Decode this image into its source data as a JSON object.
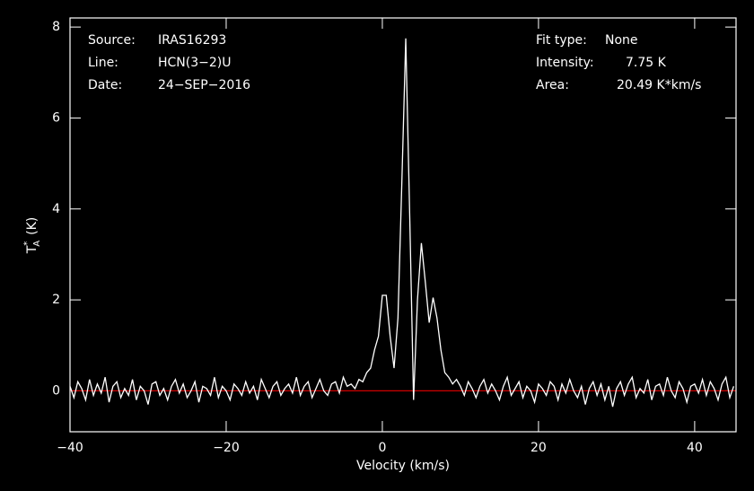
{
  "chart_data": {
    "type": "line",
    "info_left": [
      [
        "Source:",
        "IRAS16293"
      ],
      [
        "Line:",
        "HCN(3−2)U"
      ],
      [
        "Date:",
        "24−SEP−2016"
      ]
    ],
    "info_right": [
      [
        "Fit type:",
        "None"
      ],
      [
        "Intensity:",
        "7.75 K"
      ],
      [
        "Area:",
        "20.49 K*km/s"
      ]
    ],
    "x_label": "Velocity (km/s)",
    "y_label": {
      "base": "T",
      "sup": "*",
      "sub": "A",
      "unit": "(K)"
    },
    "xlim": [
      -40,
      45.3
    ],
    "ylim": [
      -0.9,
      8.2
    ],
    "xticks": [
      {
        "value": -40,
        "label": "−40"
      },
      {
        "value": -20,
        "label": "−20"
      },
      0,
      20,
      40
    ],
    "yticks": [
      0,
      2,
      4,
      6,
      8
    ],
    "hline": {
      "value": 0,
      "color": "#d00000"
    },
    "series": [
      {
        "color": "#ffffff",
        "x": [
          -40,
          -39.5,
          -39,
          -38.5,
          -38,
          -37.5,
          -37,
          -36.5,
          -36,
          -35.5,
          -35,
          -34.5,
          -34,
          -33.5,
          -33,
          -32.5,
          -32,
          -31.5,
          -31,
          -30.5,
          -30,
          -29.5,
          -29,
          -28.5,
          -28,
          -27.5,
          -27,
          -26.5,
          -26,
          -25.5,
          -25,
          -24.5,
          -24,
          -23.5,
          -23,
          -22.5,
          -22,
          -21.5,
          -21,
          -20.5,
          -20,
          -19.5,
          -19,
          -18.5,
          -18,
          -17.5,
          -17,
          -16.5,
          -16,
          -15.5,
          -15,
          -14.5,
          -14,
          -13.5,
          -13,
          -12.5,
          -12,
          -11.5,
          -11,
          -10.5,
          -10,
          -9.5,
          -9,
          -8.5,
          -8,
          -7.5,
          -7,
          -6.5,
          -6,
          -5.5,
          -5,
          -4.5,
          -4,
          -3.5,
          -3,
          -2.5,
          -2,
          -1.5,
          -1,
          -0.5,
          0,
          0.5,
          1,
          1.5,
          2,
          2.5,
          3,
          3.5,
          4,
          4.5,
          5,
          5.5,
          6,
          6.5,
          7,
          7.5,
          8,
          8.5,
          9,
          9.5,
          10,
          10.5,
          11,
          11.5,
          12,
          12.5,
          13,
          13.5,
          14,
          14.5,
          15,
          15.5,
          16,
          16.5,
          17,
          17.5,
          18,
          18.5,
          19,
          19.5,
          20,
          20.5,
          21,
          21.5,
          22,
          22.5,
          23,
          23.5,
          24,
          24.5,
          25,
          25.5,
          26,
          26.5,
          27,
          27.5,
          28,
          28.5,
          29,
          29.5,
          30,
          30.5,
          31,
          31.5,
          32,
          32.5,
          33,
          33.5,
          34,
          34.5,
          35,
          35.5,
          36,
          36.5,
          37,
          37.5,
          38,
          38.5,
          39,
          39.5,
          40,
          40.5,
          41,
          41.5,
          42,
          42.5,
          43,
          43.5,
          44,
          44.5,
          45
        ],
        "values": [
          0.1,
          -0.15,
          0.2,
          0.05,
          -0.2,
          0.25,
          -0.1,
          0.15,
          -0.05,
          0.3,
          -0.25,
          0.1,
          0.2,
          -0.15,
          0.05,
          -0.1,
          0.25,
          -0.2,
          0.1,
          0.0,
          -0.3,
          0.15,
          0.2,
          -0.1,
          0.05,
          -0.2,
          0.1,
          0.25,
          -0.05,
          0.15,
          -0.15,
          0.0,
          0.2,
          -0.25,
          0.1,
          0.05,
          -0.1,
          0.3,
          -0.15,
          0.1,
          0.0,
          -0.2,
          0.15,
          0.05,
          -0.1,
          0.2,
          -0.05,
          0.1,
          -0.2,
          0.25,
          0.05,
          -0.15,
          0.1,
          0.2,
          -0.1,
          0.05,
          0.15,
          -0.05,
          0.3,
          -0.1,
          0.1,
          0.2,
          -0.15,
          0.05,
          0.25,
          0.0,
          -0.1,
          0.15,
          0.2,
          -0.05,
          0.3,
          0.1,
          0.15,
          0.05,
          0.25,
          0.2,
          0.4,
          0.5,
          0.9,
          1.2,
          2.1,
          2.1,
          1.2,
          0.5,
          1.6,
          4.6,
          7.75,
          3.9,
          -0.2,
          2.0,
          3.25,
          2.4,
          1.5,
          2.05,
          1.6,
          0.9,
          0.4,
          0.3,
          0.15,
          0.25,
          0.1,
          -0.1,
          0.2,
          0.05,
          -0.15,
          0.1,
          0.25,
          -0.05,
          0.15,
          0.0,
          -0.2,
          0.1,
          0.3,
          -0.1,
          0.05,
          0.2,
          -0.15,
          0.1,
          0.0,
          -0.25,
          0.15,
          0.05,
          -0.1,
          0.2,
          0.1,
          -0.2,
          0.15,
          -0.05,
          0.25,
          0.0,
          -0.15,
          0.1,
          -0.3,
          0.05,
          0.2,
          -0.1,
          0.15,
          -0.2,
          0.1,
          -0.35,
          0.05,
          0.2,
          -0.1,
          0.15,
          0.3,
          -0.15,
          0.05,
          -0.05,
          0.25,
          -0.2,
          0.1,
          0.15,
          -0.1,
          0.3,
          0.0,
          -0.15,
          0.2,
          0.05,
          -0.25,
          0.1,
          0.15,
          -0.05,
          0.25,
          -0.1,
          0.2,
          0.05,
          -0.2,
          0.15,
          0.3,
          -0.15,
          0.1
        ]
      }
    ]
  }
}
